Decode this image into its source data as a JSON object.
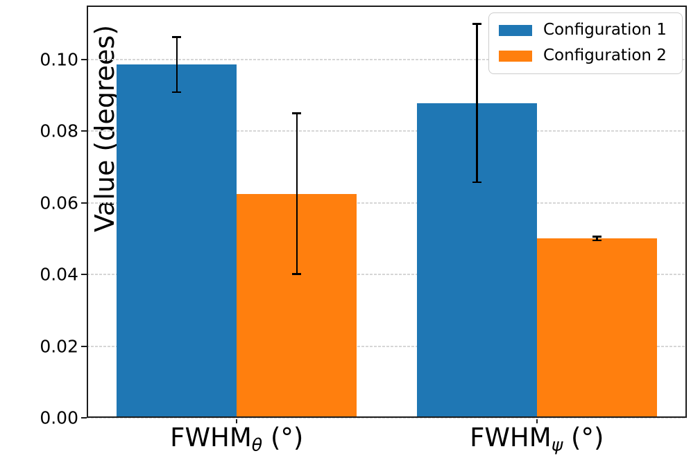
{
  "chart_data": {
    "type": "bar",
    "title": "",
    "xlabel": "",
    "ylabel": "Value (degrees)",
    "categories": [
      {
        "base": "FWHM",
        "sub": "θ",
        "suffix": " (°)"
      },
      {
        "base": "FWHM",
        "sub": "ψ",
        "suffix": " (°)"
      }
    ],
    "series": [
      {
        "name": "Configuration 1",
        "color": "#1f77b4",
        "values": [
          0.0985,
          0.0878
        ],
        "errors": [
          0.0077,
          0.0221
        ]
      },
      {
        "name": "Configuration 2",
        "color": "#ff7f0e",
        "values": [
          0.0625,
          0.05
        ],
        "errors": [
          0.0224,
          0.0005
        ]
      }
    ],
    "ylim": [
      0,
      0.115
    ],
    "yticks": [
      0,
      0.02,
      0.04,
      0.06,
      0.08,
      0.1
    ],
    "ytick_labels": [
      "0.00",
      "0.02",
      "0.04",
      "0.06",
      "0.08",
      "0.10"
    ],
    "bar_width_fraction": 0.4,
    "grid": "horizontal-dashed",
    "grid_color": "#d6d6d6",
    "error_color": "#000000",
    "legend_position": "upper-right"
  }
}
